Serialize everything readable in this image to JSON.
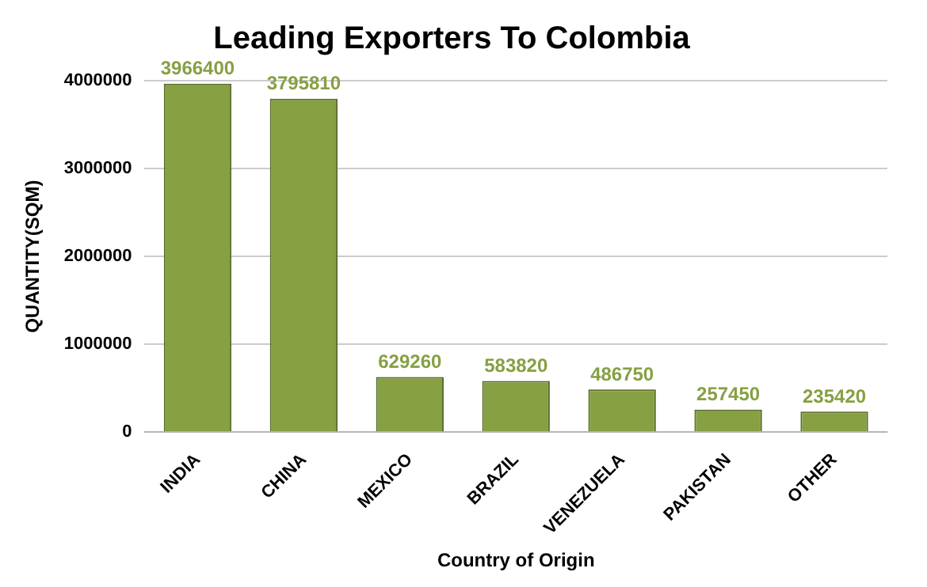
{
  "chart_data": {
    "type": "bar",
    "title": "Leading Exporters To Colombia",
    "xlabel": "Country of Origin",
    "ylabel": "QUANTITY(SQM)",
    "categories": [
      "INDIA",
      "CHINA",
      "MEXICO",
      "BRAZIL",
      "VENEZUELA",
      "PAKISTAN",
      "OTHER"
    ],
    "values": [
      3966400,
      3795810,
      629260,
      583820,
      486750,
      257450,
      235420
    ],
    "color": "#86a043",
    "ylim": [
      0,
      4000000
    ],
    "yticks": [
      0,
      1000000,
      2000000,
      3000000,
      4000000
    ],
    "grid": "y",
    "data_labels": true,
    "legend": false
  }
}
